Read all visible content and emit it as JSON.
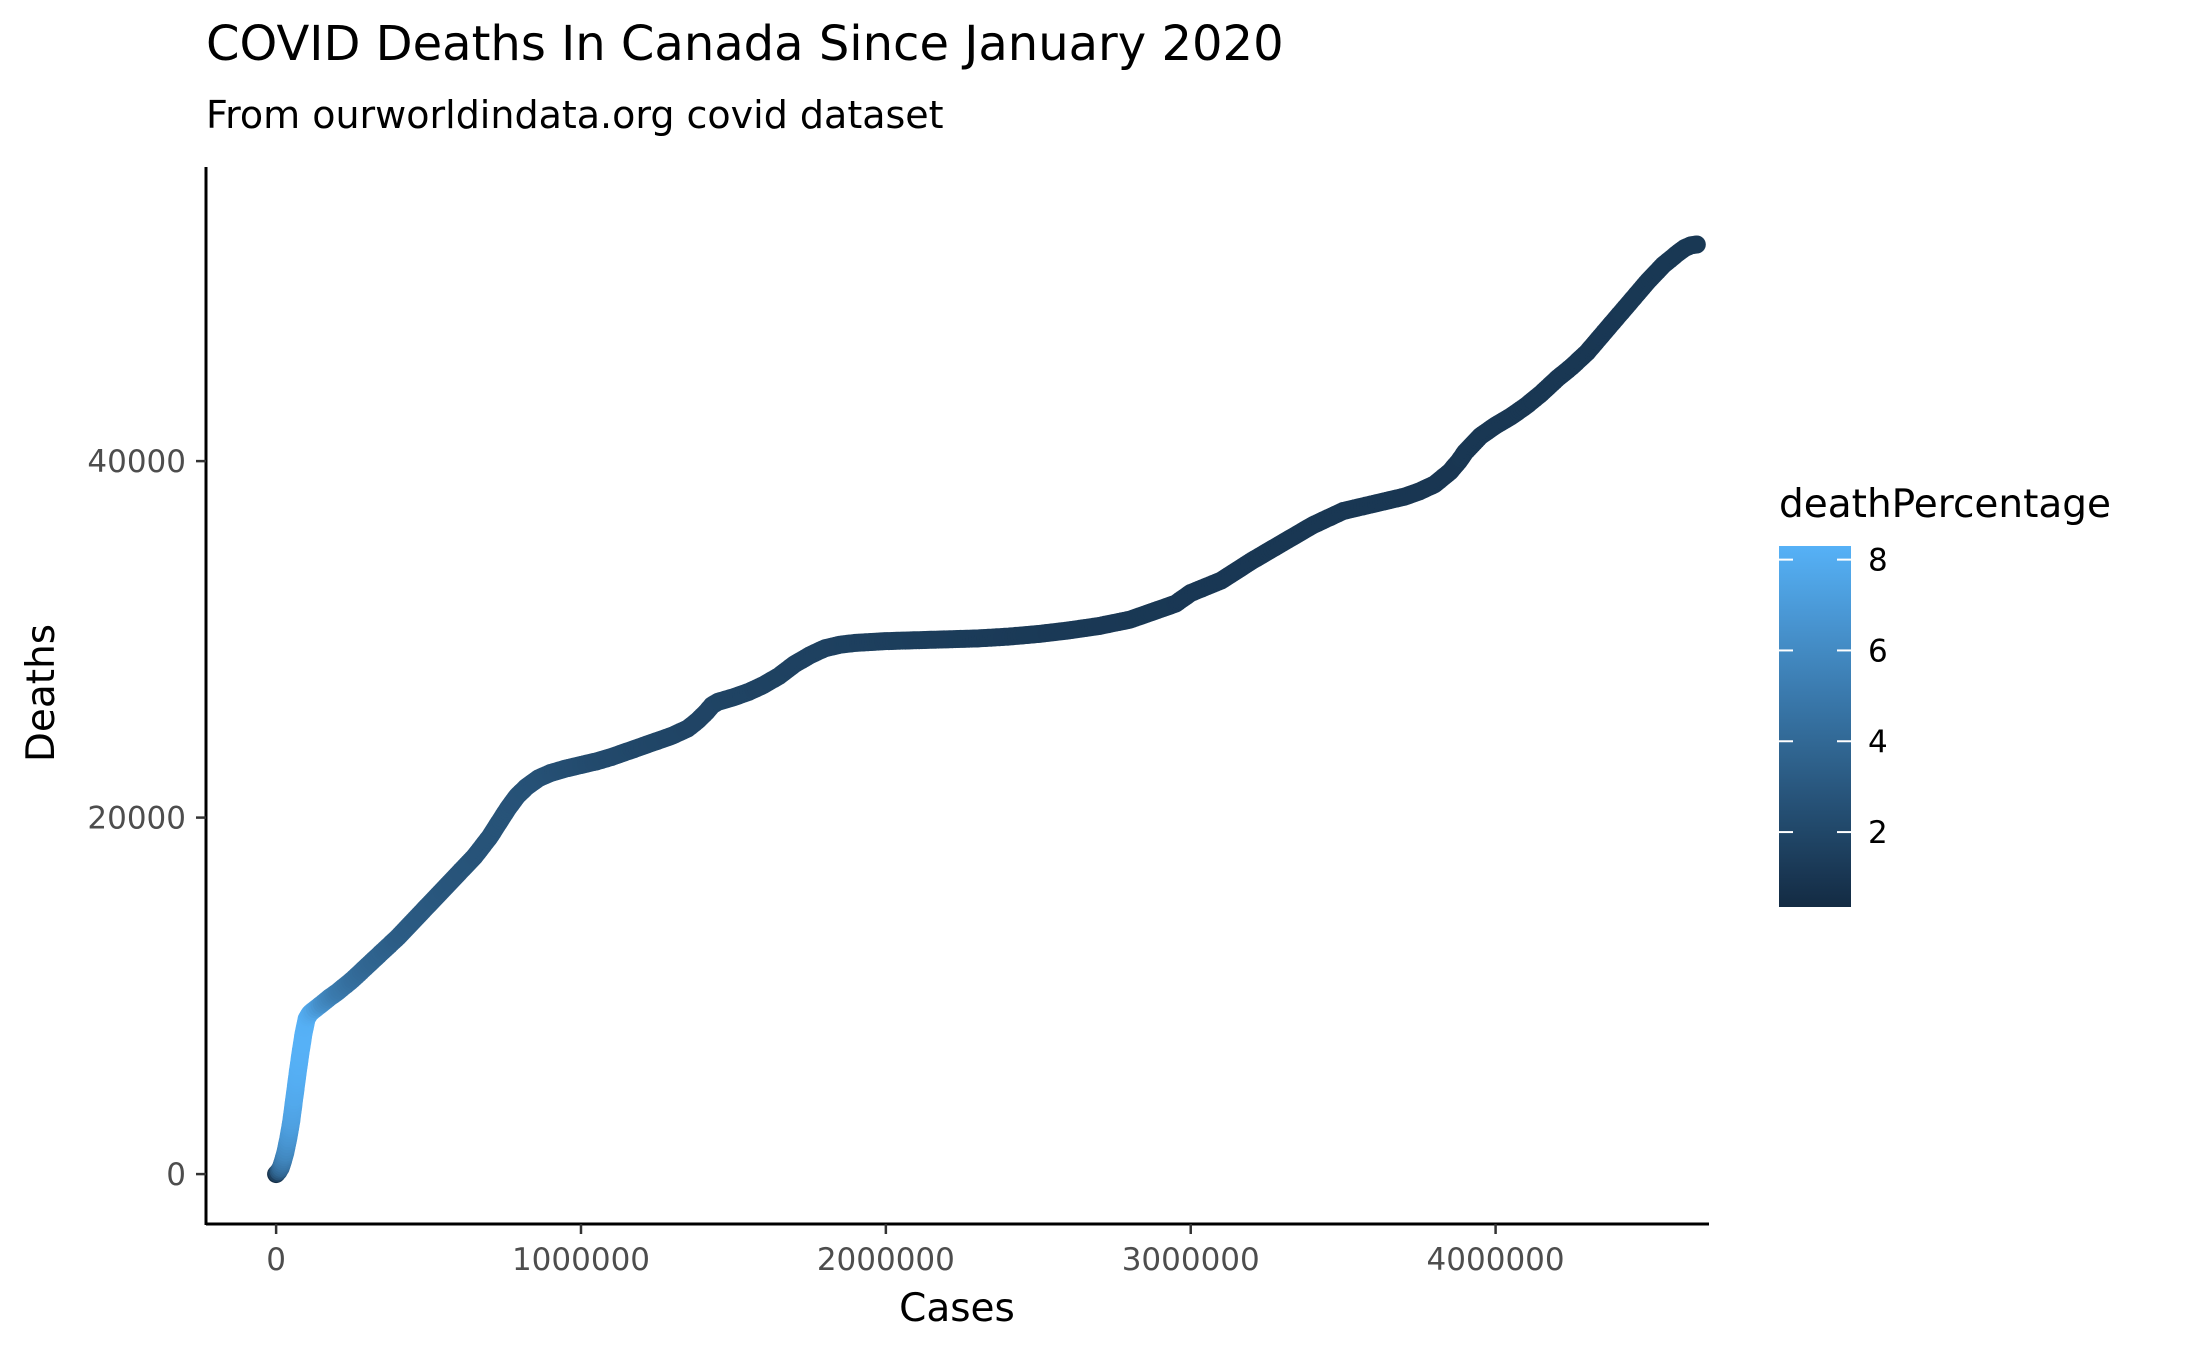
{
  "chart_data": {
    "type": "scatter",
    "title": "COVID Deaths In Canada Since January 2020",
    "subtitle": "From ourworldindata.org covid dataset",
    "xlabel": "Cases",
    "ylabel": "Deaths",
    "xlim": [
      -230000,
      4700000
    ],
    "ylim": [
      -2800,
      56500
    ],
    "x_ticks": [
      0,
      1000000,
      2000000,
      3000000,
      4000000
    ],
    "x_tick_labels": [
      "0",
      "1000000",
      "2000000",
      "3000000",
      "4000000"
    ],
    "y_ticks": [
      0,
      20000,
      40000
    ],
    "y_tick_labels": [
      "0",
      "20000",
      "40000"
    ],
    "grid": false,
    "legend": {
      "title": "deathPercentage",
      "placement": "right",
      "range": [
        0.35,
        8.3
      ],
      "ticks": [
        2,
        4,
        6,
        8
      ],
      "tick_labels": [
        "2",
        "4",
        "6",
        "8"
      ],
      "color_low": "#132B43",
      "color_high": "#56B1F7"
    },
    "series": [
      {
        "x": [
          0,
          3000,
          8000,
          15000,
          22000,
          30000,
          40000,
          50000,
          60000,
          70000,
          80000,
          90000,
          100000,
          110000,
          120000,
          135000,
          150000,
          175000,
          200000,
          250000,
          300000,
          350000,
          400000,
          450000,
          500000,
          550000,
          600000,
          650000,
          700000,
          730000,
          760000,
          790000,
          820000,
          860000,
          900000,
          950000,
          1000000,
          1050000,
          1100000,
          1150000,
          1200000,
          1250000,
          1300000,
          1350000,
          1380000,
          1410000,
          1430000,
          1450000,
          1500000,
          1550000,
          1600000,
          1650000,
          1700000,
          1750000,
          1800000,
          1850000,
          1900000,
          1950000,
          2000000,
          2100000,
          2200000,
          2300000,
          2400000,
          2500000,
          2600000,
          2700000,
          2800000,
          2900000,
          2950000,
          3000000,
          3100000,
          3200000,
          3300000,
          3400000,
          3500000,
          3600000,
          3650000,
          3700000,
          3750000,
          3800000,
          3850000,
          3880000,
          3900000,
          3950000,
          4000000,
          4050000,
          4100000,
          4150000,
          4200000,
          4250000,
          4300000,
          4350000,
          4400000,
          4450000,
          4500000,
          4550000,
          4600000,
          4620000,
          4640000,
          4660000
        ],
        "y": [
          0,
          50,
          150,
          350,
          700,
          1200,
          2000,
          3000,
          4300,
          5600,
          6800,
          7900,
          8700,
          9000,
          9150,
          9350,
          9550,
          9900,
          10200,
          10900,
          11700,
          12500,
          13300,
          14200,
          15100,
          16000,
          16900,
          17800,
          18900,
          19700,
          20500,
          21200,
          21700,
          22200,
          22500,
          22750,
          22950,
          23150,
          23400,
          23700,
          24000,
          24300,
          24600,
          25000,
          25400,
          25900,
          26300,
          26500,
          26750,
          27050,
          27450,
          27950,
          28600,
          29100,
          29500,
          29700,
          29800,
          29850,
          29900,
          29950,
          30000,
          30050,
          30150,
          30300,
          30500,
          30750,
          31100,
          31700,
          32000,
          32600,
          33300,
          34400,
          35400,
          36400,
          37200,
          37600,
          37800,
          38000,
          38300,
          38700,
          39400,
          40000,
          40500,
          41400,
          42000,
          42500,
          43100,
          43800,
          44600,
          45300,
          46100,
          47100,
          48100,
          49100,
          50100,
          51000,
          51700,
          51950,
          52100,
          52150
        ],
        "color": [
          0.5,
          1.6,
          2.8,
          3.9,
          4.9,
          5.8,
          6.6,
          7.3,
          7.8,
          8.1,
          8.25,
          8.3,
          8.2,
          7.9,
          7.6,
          7.0,
          6.4,
          5.7,
          5.1,
          4.4,
          3.9,
          3.6,
          3.3,
          3.15,
          3.05,
          2.9,
          2.8,
          2.75,
          2.7,
          2.7,
          2.7,
          2.68,
          2.65,
          2.6,
          2.5,
          2.4,
          2.3,
          2.2,
          2.13,
          2.06,
          2.0,
          1.94,
          1.9,
          1.85,
          1.84,
          1.84,
          1.84,
          1.83,
          1.78,
          1.75,
          1.72,
          1.69,
          1.68,
          1.66,
          1.64,
          1.6,
          1.57,
          1.53,
          1.5,
          1.43,
          1.37,
          1.31,
          1.26,
          1.22,
          1.18,
          1.15,
          1.12,
          1.1,
          1.09,
          1.09,
          1.08,
          1.08,
          1.07,
          1.07,
          1.06,
          1.04,
          1.04,
          1.03,
          1.03,
          1.03,
          1.03,
          1.03,
          1.04,
          1.05,
          1.05,
          1.05,
          1.05,
          1.06,
          1.06,
          1.07,
          1.07,
          1.08,
          1.09,
          1.1,
          1.11,
          1.12,
          1.12,
          1.12,
          1.12,
          1.12
        ]
      }
    ]
  }
}
